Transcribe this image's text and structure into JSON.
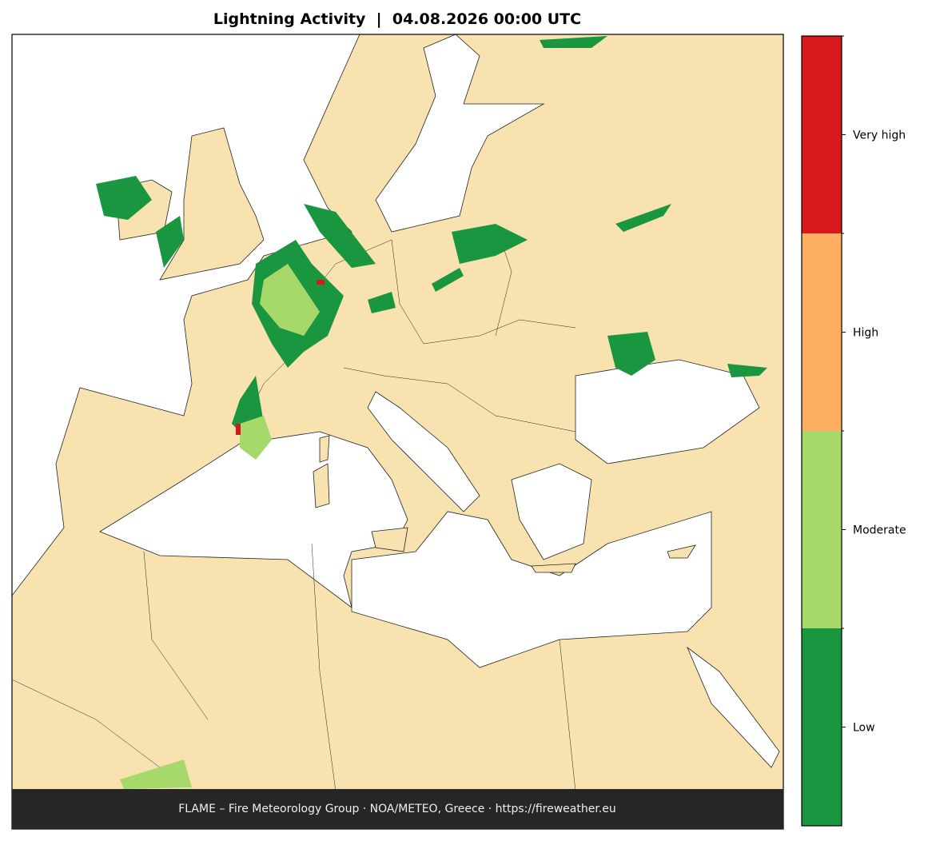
{
  "title": "Lightning Activity  |  04.08.2026 00:00 UTC",
  "colorbar": {
    "levels": [
      {
        "label": "Low",
        "color": "#1a9641"
      },
      {
        "label": "Moderate",
        "color": "#a6d96a"
      },
      {
        "label": "High",
        "color": "#fdae61"
      },
      {
        "label": "Very high",
        "color": "#d7191c"
      }
    ]
  },
  "footer": "FLAME – Fire Meteorology Group · NOA/METEO, Greece · https://fireweather.eu"
}
